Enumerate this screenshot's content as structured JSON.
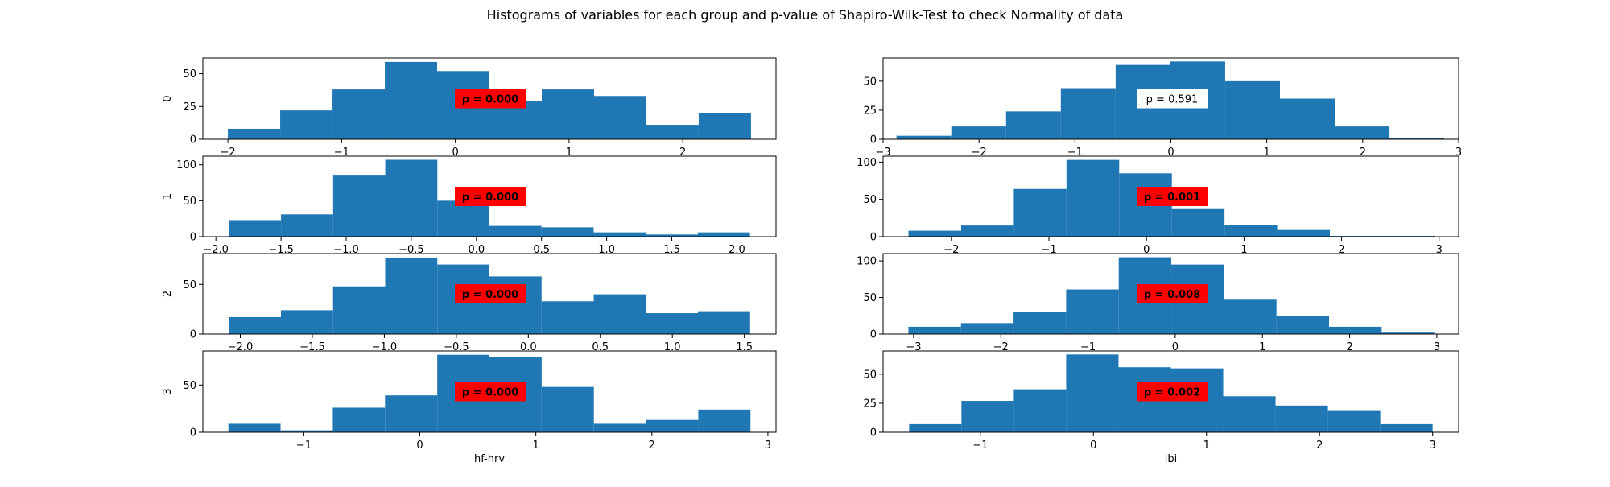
{
  "suptitle": "Histograms of variables for each group and p-value of Shapiro-Wilk-Test to check Normality of data",
  "colors": {
    "bar": "#1f77b4",
    "significant_box": "#ff0000",
    "non_significant_box": "#ffffff"
  },
  "columns": [
    {
      "xlabel": "hf-hrv"
    },
    {
      "xlabel": "ibi"
    }
  ],
  "rows": [
    {
      "ylabel": "0"
    },
    {
      "ylabel": "1"
    },
    {
      "ylabel": "2"
    },
    {
      "ylabel": "3"
    }
  ],
  "chart_data": [
    {
      "type": "bar",
      "row": 0,
      "col": 0,
      "bin_edges": [
        -2.0,
        -1.54,
        -1.08,
        -0.62,
        -0.16,
        0.3,
        0.76,
        1.22,
        1.68,
        2.14,
        2.6
      ],
      "values": [
        8,
        22,
        38,
        59,
        52,
        29,
        38,
        33,
        11,
        20
      ],
      "xlim": [
        -2.22,
        2.82
      ],
      "ylim": [
        0,
        62
      ],
      "xticks": [
        -2,
        -1,
        0,
        1,
        2
      ],
      "xtick_labels": [
        "−2",
        "−1",
        "0",
        "1",
        "2"
      ],
      "yticks": [
        0,
        25,
        50
      ],
      "ytick_labels": [
        "0",
        "25",
        "50"
      ],
      "annotation": {
        "text": "p = 0.000",
        "significant": true
      }
    },
    {
      "type": "bar",
      "row": 1,
      "col": 0,
      "bin_edges": [
        -1.9,
        -1.5,
        -1.1,
        -0.7,
        -0.3,
        0.1,
        0.5,
        0.9,
        1.3,
        1.7,
        2.1
      ],
      "values": [
        23,
        31,
        85,
        107,
        50,
        15,
        13,
        6,
        3,
        6
      ],
      "xlim": [
        -2.1,
        2.3
      ],
      "ylim": [
        0,
        112
      ],
      "xticks": [
        -2.0,
        -1.5,
        -1.0,
        -0.5,
        0.0,
        0.5,
        1.0,
        1.5,
        2.0
      ],
      "xtick_labels": [
        "−2.0",
        "−1.5",
        "−1.0",
        "−0.5",
        "0.0",
        "0.5",
        "1.0",
        "1.5",
        "2.0"
      ],
      "yticks": [
        0,
        50,
        100
      ],
      "ytick_labels": [
        "0",
        "50",
        "100"
      ],
      "annotation": {
        "text": "p = 0.000",
        "significant": true
      }
    },
    {
      "type": "bar",
      "row": 2,
      "col": 0,
      "bin_edges": [
        -2.08,
        -1.718,
        -1.356,
        -0.994,
        -0.632,
        -0.27,
        0.092,
        0.454,
        0.816,
        1.178,
        1.54
      ],
      "values": [
        17,
        24,
        48,
        77,
        70,
        58,
        33,
        40,
        21,
        23
      ],
      "xlim": [
        -2.26,
        1.72
      ],
      "ylim": [
        0,
        81
      ],
      "xticks": [
        -2.0,
        -1.5,
        -1.0,
        -0.5,
        0.0,
        0.5,
        1.0,
        1.5
      ],
      "xtick_labels": [
        "−2.0",
        "−1.5",
        "−1.0",
        "−0.5",
        "0.0",
        "0.5",
        "1.0",
        "1.5"
      ],
      "yticks": [
        0,
        50
      ],
      "ytick_labels": [
        "0",
        "50"
      ],
      "annotation": {
        "text": "p = 0.000",
        "significant": true
      }
    },
    {
      "type": "bar",
      "row": 3,
      "col": 0,
      "bin_edges": [
        -1.65,
        -1.2,
        -0.75,
        -0.3,
        0.15,
        0.6,
        1.05,
        1.5,
        1.95,
        2.4,
        2.85
      ],
      "values": [
        9,
        2,
        26,
        39,
        82,
        80,
        48,
        9,
        13,
        24
      ],
      "xlim": [
        -1.87,
        3.07
      ],
      "ylim": [
        0,
        86
      ],
      "xticks": [
        -1,
        0,
        1,
        2,
        3
      ],
      "xtick_labels": [
        "−1",
        "0",
        "1",
        "2",
        "3"
      ],
      "yticks": [
        0,
        50
      ],
      "ytick_labels": [
        "0",
        "50"
      ],
      "annotation": {
        "text": "p = 0.000",
        "significant": true
      }
    },
    {
      "type": "bar",
      "row": 0,
      "col": 1,
      "bin_edges": [
        -2.86,
        -2.289,
        -1.718,
        -1.147,
        -0.576,
        -0.005,
        0.566,
        1.137,
        1.708,
        2.279,
        2.85
      ],
      "values": [
        3,
        11,
        24,
        44,
        64,
        67,
        50,
        35,
        11,
        1
      ],
      "xlim": [
        -3.0,
        3.0
      ],
      "ylim": [
        0,
        70
      ],
      "xticks": [
        -3,
        -2,
        -1,
        0,
        1,
        2,
        3
      ],
      "xtick_labels": [
        "−3",
        "−2",
        "−1",
        "0",
        "1",
        "2",
        "3"
      ],
      "yticks": [
        0,
        25,
        50
      ],
      "ytick_labels": [
        "0",
        "25",
        "50"
      ],
      "annotation": {
        "text": "p = 0.591",
        "significant": false
      }
    },
    {
      "type": "bar",
      "row": 1,
      "col": 1,
      "bin_edges": [
        -2.44,
        -1.9,
        -1.36,
        -0.82,
        -0.28,
        0.26,
        0.8,
        1.34,
        1.88,
        2.42,
        2.96
      ],
      "values": [
        8,
        15,
        64,
        103,
        85,
        37,
        16,
        9,
        1,
        1
      ],
      "xlim": [
        -2.7,
        3.2
      ],
      "ylim": [
        0,
        108
      ],
      "xticks": [
        -2,
        -1,
        0,
        1,
        2,
        3
      ],
      "xtick_labels": [
        "−2",
        "−1",
        "0",
        "1",
        "2",
        "3"
      ],
      "yticks": [
        0,
        50,
        100
      ],
      "ytick_labels": [
        "0",
        "50",
        "100"
      ],
      "annotation": {
        "text": "p = 0.001",
        "significant": true
      }
    },
    {
      "type": "bar",
      "row": 2,
      "col": 1,
      "bin_edges": [
        -3.06,
        -2.457,
        -1.854,
        -1.251,
        -0.648,
        -0.045,
        0.558,
        1.161,
        1.764,
        2.367,
        2.97
      ],
      "values": [
        10,
        15,
        30,
        61,
        105,
        95,
        47,
        25,
        10,
        2
      ],
      "xlim": [
        -3.35,
        3.25
      ],
      "ylim": [
        0,
        110
      ],
      "xticks": [
        -3,
        -2,
        -1,
        0,
        1,
        2,
        3
      ],
      "xtick_labels": [
        "−3",
        "−2",
        "−1",
        "0",
        "1",
        "2",
        "3"
      ],
      "yticks": [
        0,
        50,
        100
      ],
      "ytick_labels": [
        "0",
        "50",
        "100"
      ],
      "annotation": {
        "text": "p = 0.008",
        "significant": true
      }
    },
    {
      "type": "bar",
      "row": 3,
      "col": 1,
      "bin_edges": [
        -1.63,
        -1.167,
        -0.704,
        -0.241,
        0.222,
        0.685,
        1.148,
        1.611,
        2.074,
        2.537,
        3.0
      ],
      "values": [
        7,
        27,
        37,
        67,
        56,
        55,
        31,
        23,
        19,
        7
      ],
      "xlim": [
        -1.86,
        3.23
      ],
      "ylim": [
        0,
        70
      ],
      "xticks": [
        -1,
        0,
        1,
        2,
        3
      ],
      "xtick_labels": [
        "−1",
        "0",
        "1",
        "2",
        "3"
      ],
      "yticks": [
        0,
        25,
        50
      ],
      "ytick_labels": [
        "0",
        "25",
        "50"
      ],
      "annotation": {
        "text": "p = 0.002",
        "significant": true
      }
    }
  ]
}
